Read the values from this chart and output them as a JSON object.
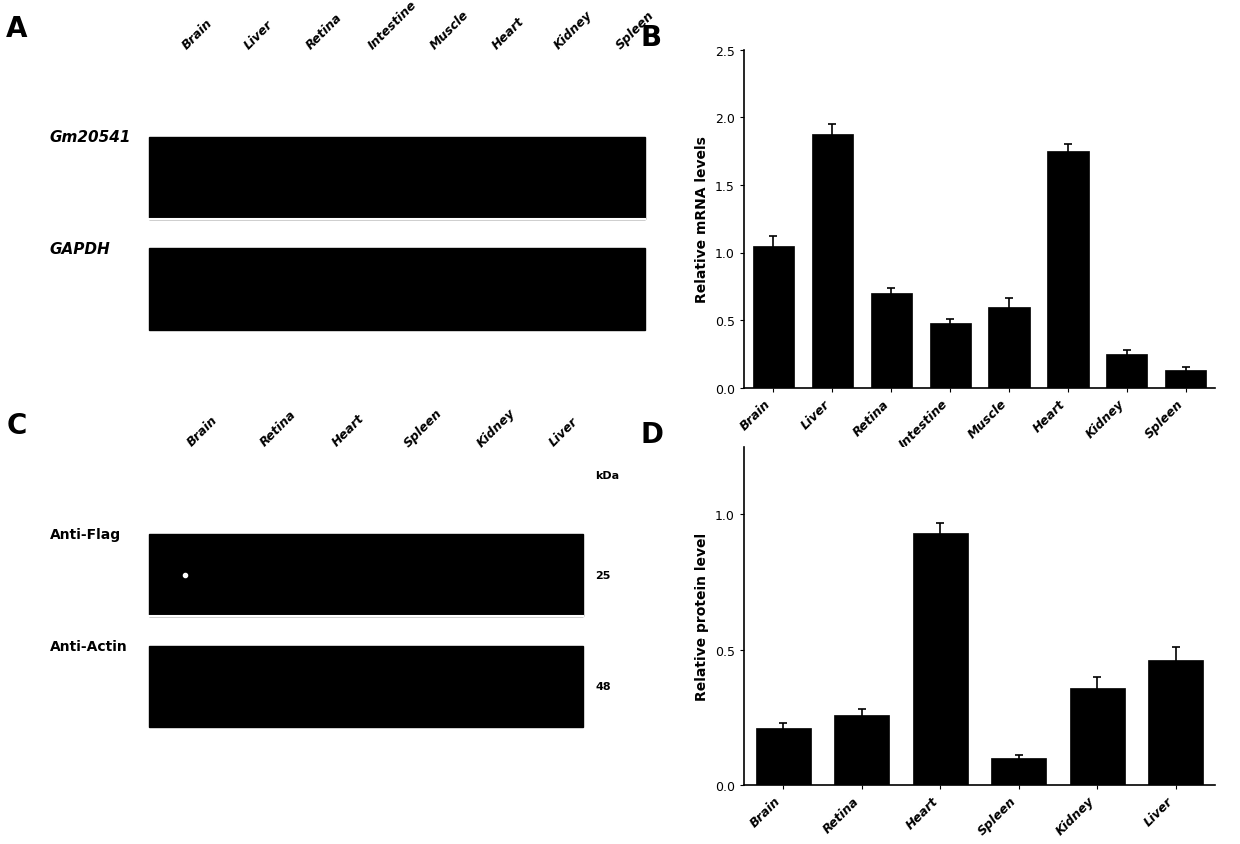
{
  "panel_A": {
    "label": "A",
    "rows": [
      "Gm20541",
      "GAPDH"
    ],
    "cols": [
      "Brain",
      "Liver",
      "Retina",
      "Intestine",
      "Muscle",
      "Heart",
      "Kidney",
      "Spleen"
    ]
  },
  "panel_B": {
    "label": "B",
    "categories": [
      "Brain",
      "Liver",
      "Retina",
      "Intestine",
      "Muscle",
      "Heart",
      "Kidney",
      "Spleen"
    ],
    "values": [
      1.05,
      1.88,
      0.7,
      0.48,
      0.6,
      1.75,
      0.25,
      0.13
    ],
    "errors": [
      0.07,
      0.07,
      0.04,
      0.03,
      0.06,
      0.05,
      0.03,
      0.02
    ],
    "bar_color": "#000000",
    "ylabel": "Relative mRNA levels",
    "ylim": [
      0,
      2.5
    ],
    "yticks": [
      0.0,
      0.5,
      1.0,
      1.5,
      2.0,
      2.5
    ]
  },
  "panel_C": {
    "label": "C",
    "rows": [
      "Anti-Flag",
      "Anti-Actin"
    ],
    "cols": [
      "Brain",
      "Retina",
      "Heart",
      "Spleen",
      "Kidney",
      "Liver"
    ],
    "kda_labels": [
      "25",
      "48"
    ]
  },
  "panel_D": {
    "label": "D",
    "categories": [
      "Brain",
      "Retina",
      "Heart",
      "Spleen",
      "Kidney",
      "Liver"
    ],
    "values": [
      0.21,
      0.26,
      0.93,
      0.1,
      0.36,
      0.46
    ],
    "errors": [
      0.02,
      0.02,
      0.04,
      0.01,
      0.04,
      0.05
    ],
    "bar_color": "#000000",
    "ylabel": "Relative protein level",
    "ylim": [
      0,
      1.25
    ],
    "yticks": [
      0.0,
      0.5,
      1.0
    ]
  },
  "bg_color": "#ffffff"
}
